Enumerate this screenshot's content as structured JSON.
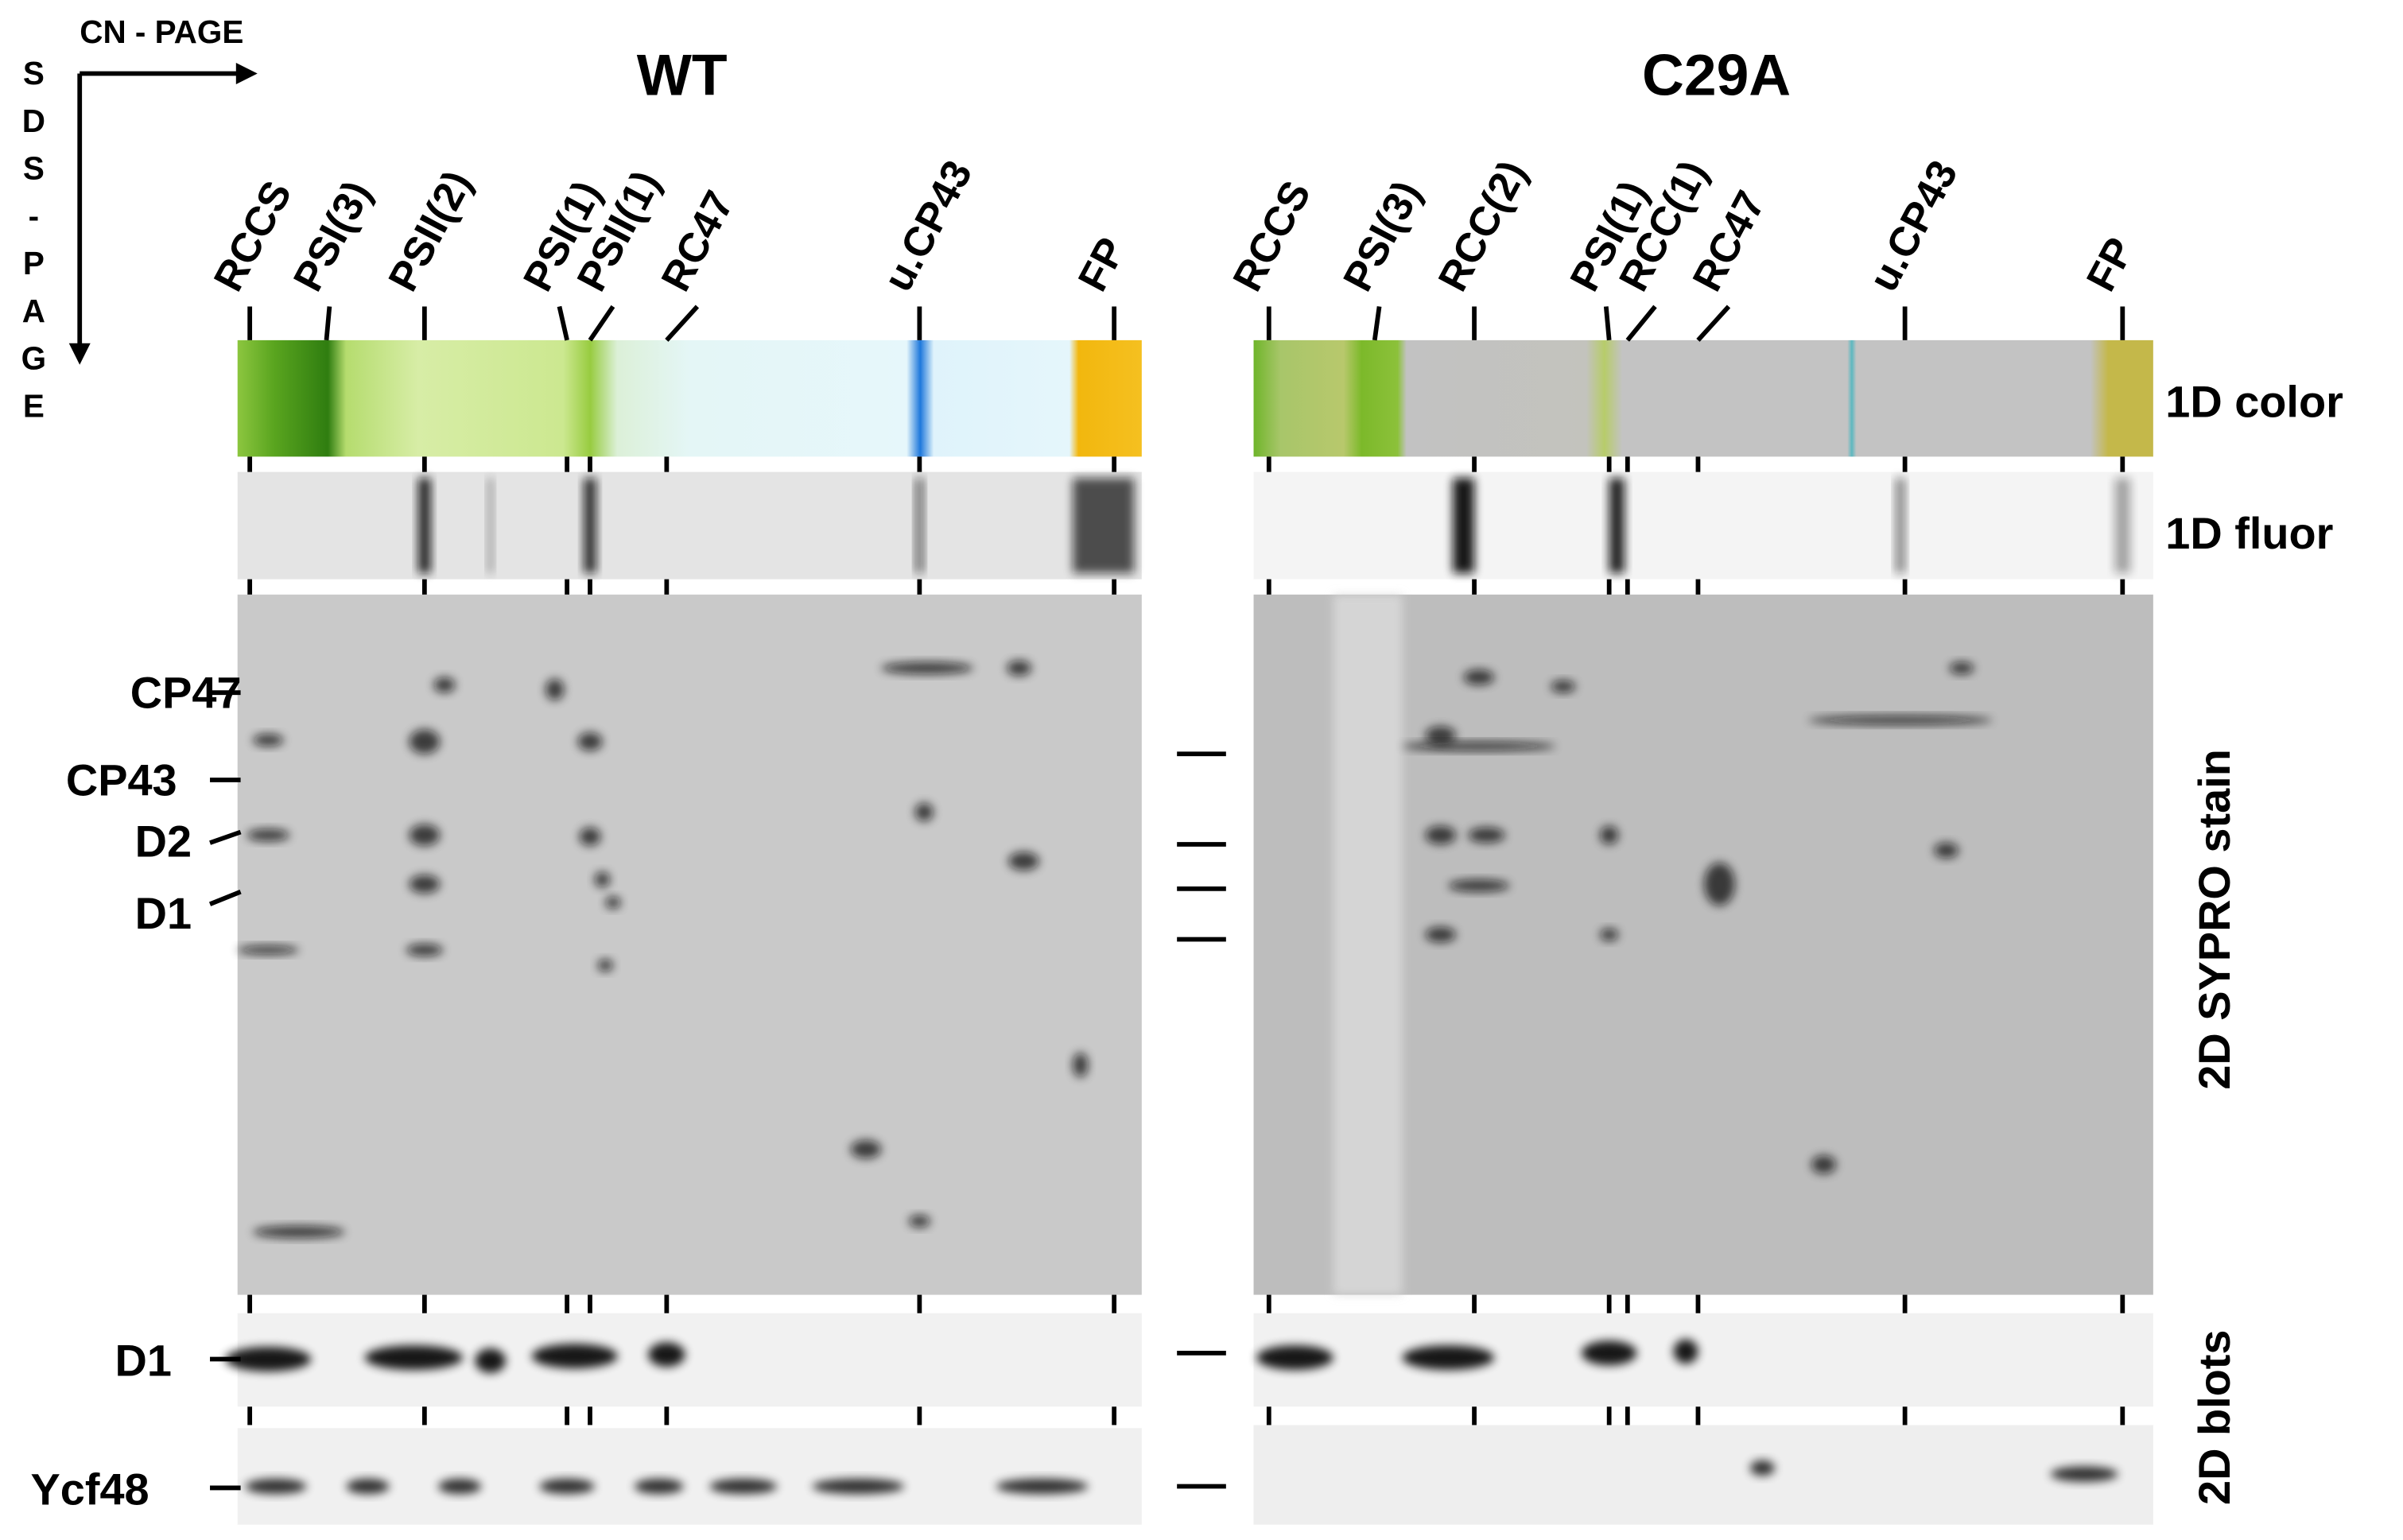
{
  "axes": {
    "horizontal": "CN - PAGE",
    "vertical": [
      "S",
      "D",
      "S",
      "-",
      "P",
      "A",
      "G",
      "E"
    ]
  },
  "panels": [
    {
      "title": "WT",
      "lanes": [
        "RCCS",
        "PSI(3)",
        "PSII(2)",
        "PSI(1)",
        "PSII(1)",
        "RC47",
        "u.CP43",
        "FP"
      ]
    },
    {
      "title": "C29A",
      "lanes": [
        "RCCS",
        "PSI(3)",
        "RCC(2)",
        "PSI(1)",
        "RCC(1)",
        "RC47",
        "u.CP43",
        "FP"
      ]
    }
  ],
  "row_labels": [
    "1D color",
    "1D fluor",
    "2D SYPRO stain",
    "2D blots"
  ],
  "protein_labels": [
    "CP47",
    "CP43",
    "D2",
    "D1"
  ],
  "blot_labels": [
    "D1",
    "Ycf48"
  ]
}
